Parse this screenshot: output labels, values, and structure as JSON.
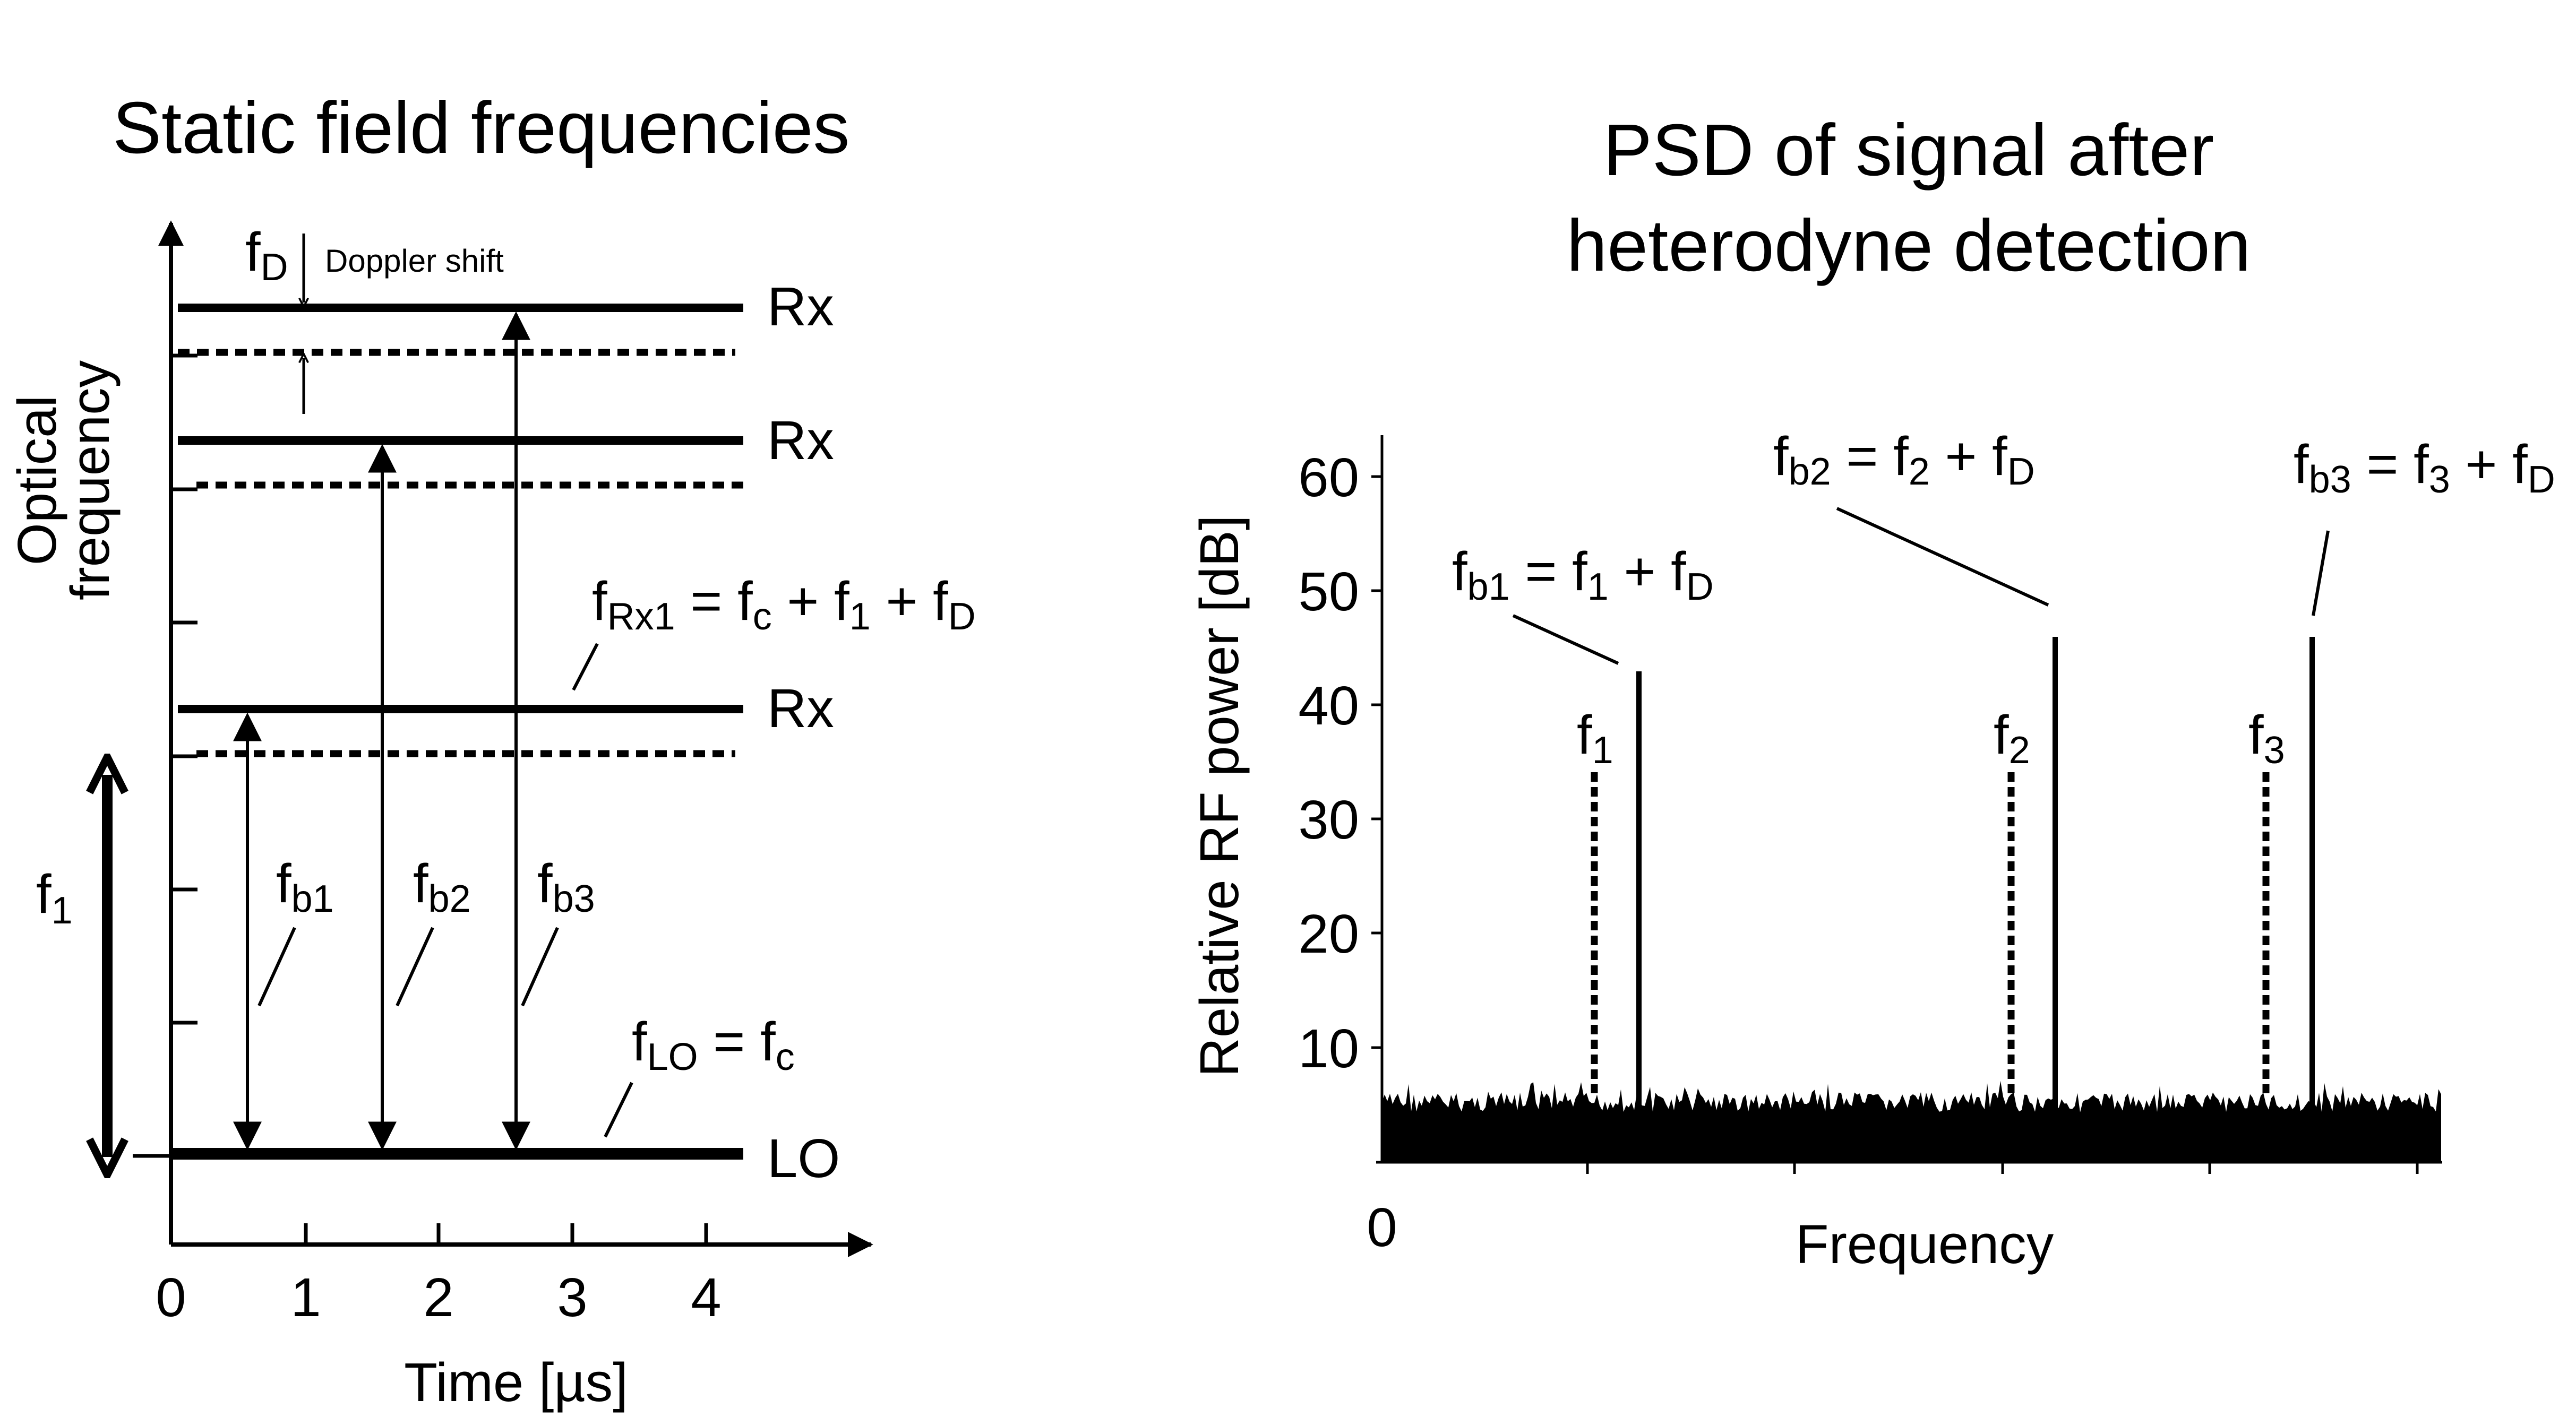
{
  "left_panel": {
    "title": "Static field frequencies",
    "y_axis_label_line1": "Optical",
    "y_axis_label_line2": "frequency",
    "x_axis_label": "Time [µs]",
    "x_ticks": [
      "0",
      "1",
      "2",
      "3",
      "4"
    ],
    "rx_labels": [
      "Rx",
      "Rx",
      "Rx"
    ],
    "lo_label": "LO",
    "doppler": {
      "f": "f",
      "sub": "D",
      "text": "Doppler shift"
    },
    "f1": {
      "f": "f",
      "sub": "1"
    },
    "beat_labels": [
      {
        "f": "f",
        "sub": "b1"
      },
      {
        "f": "f",
        "sub": "b2"
      },
      {
        "f": "f",
        "sub": "b3"
      }
    ],
    "f_rx1_eq": {
      "f": "f",
      "sub": "Rx1",
      "eq": " = ",
      "fc": "f",
      "fc_sub": "c",
      "plus1": " + ",
      "f1": "f",
      "f1_sub": "1",
      "plus2": " + ",
      "fd": "f",
      "fd_sub": "D"
    },
    "f_lo_eq": {
      "f": "f",
      "sub": "LO",
      "eq": " = ",
      "fc": "f",
      "fc_sub": "c"
    }
  },
  "right_panel": {
    "title_line1": "PSD of signal after",
    "title_line2": "heterodyne detection",
    "y_axis_label": "Relative RF power [dB]",
    "x_axis_label": "Frequency",
    "x_zero": "0",
    "y_ticks": [
      "10",
      "20",
      "30",
      "40",
      "50",
      "60"
    ],
    "freq_labels": [
      {
        "f": "f",
        "sub": "1"
      },
      {
        "f": "f",
        "sub": "2"
      },
      {
        "f": "f",
        "sub": "3"
      }
    ],
    "beat_eqs": [
      {
        "f": "f",
        "sub": "b1",
        "eq": " = ",
        "fx": "f",
        "fx_sub": "1",
        "plus": " + ",
        "fd": "f",
        "fd_sub": "D"
      },
      {
        "f": "f",
        "sub": "b2",
        "eq": " = ",
        "fx": "f",
        "fx_sub": "2",
        "plus": " + ",
        "fd": "f",
        "fd_sub": "D"
      },
      {
        "f": "f",
        "sub": "b3",
        "eq": " = ",
        "fx": "f",
        "fx_sub": "3",
        "plus": " + ",
        "fd": "f",
        "fd_sub": "D"
      }
    ]
  }
}
